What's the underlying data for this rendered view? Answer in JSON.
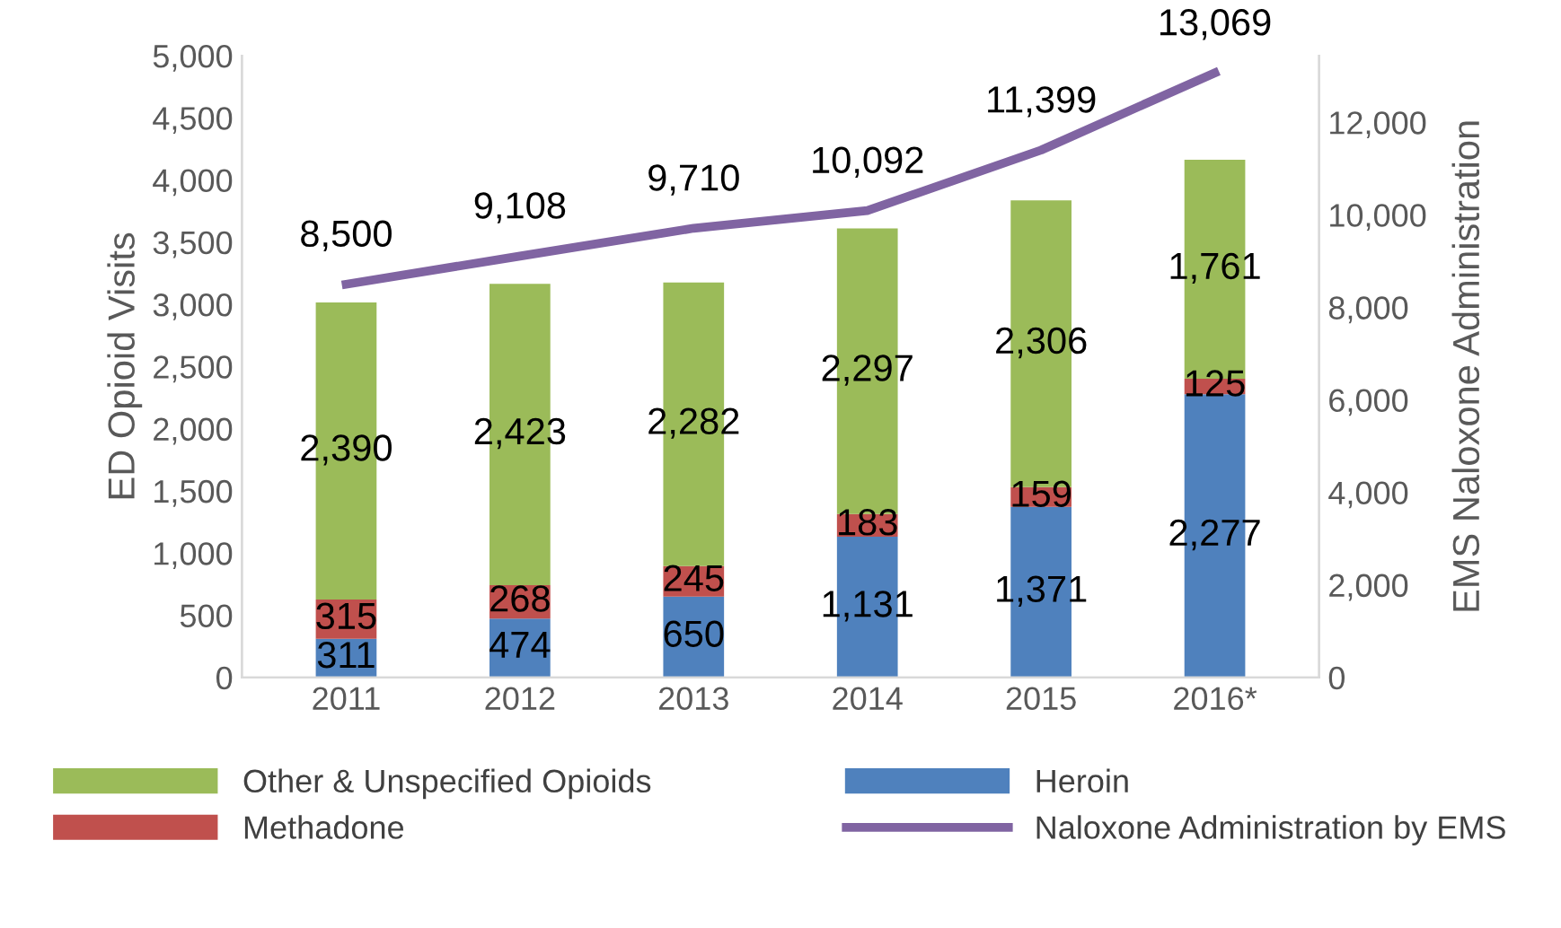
{
  "chart_data": {
    "type": "bar",
    "stacked": true,
    "categories": [
      "2011",
      "2012",
      "2013",
      "2014",
      "2015",
      "2016*"
    ],
    "ylabel": "ED Opioid Visits",
    "y2label": "EMS Naloxone Administration",
    "ylim": [
      0,
      5000
    ],
    "yticks": [
      0,
      {
        "value": 500,
        "label": "500"
      },
      {
        "value": 1000,
        "label": "1,000"
      },
      {
        "value": 1500,
        "label": "1,500"
      },
      {
        "value": 2000,
        "label": "2,000"
      },
      {
        "value": 2500,
        "label": "2,500"
      },
      {
        "value": 3000,
        "label": "3,000"
      },
      {
        "value": 3500,
        "label": "3,500"
      },
      {
        "value": 4000,
        "label": "4,000"
      },
      {
        "value": 4500,
        "label": "4,500"
      },
      {
        "value": 5000,
        "label": "5,000"
      }
    ],
    "y2lim": [
      0,
      13440
    ],
    "y2ticks": [
      0,
      {
        "value": 2000,
        "label": "2,000"
      },
      {
        "value": 4000,
        "label": "4,000"
      },
      {
        "value": 6000,
        "label": "6,000"
      },
      {
        "value": 8000,
        "label": "8,000"
      },
      {
        "value": 10000,
        "label": "10,000"
      },
      {
        "value": 12000,
        "label": "12,000"
      }
    ],
    "series": [
      {
        "name": "Heroin",
        "color": "#4f81bd",
        "values": [
          311,
          474,
          650,
          1131,
          1371,
          2277
        ],
        "value_labels": [
          "311",
          "474",
          "650",
          "1,131",
          "1,371",
          "2,277"
        ]
      },
      {
        "name": "Methadone",
        "color": "#c0504d",
        "values": [
          315,
          268,
          245,
          183,
          159,
          125
        ],
        "value_labels": [
          "315",
          "268",
          "245",
          "183",
          "159",
          "125"
        ]
      },
      {
        "name": "Other & Unspecified Opioids",
        "color": "#9bbb59",
        "values": [
          2390,
          2423,
          2282,
          2297,
          2306,
          1761
        ],
        "value_labels": [
          "2,390",
          "2,423",
          "2,282",
          "2,297",
          "2,306",
          "1,761"
        ]
      },
      {
        "name": "Naloxone Administration by EMS",
        "type": "line",
        "axis": "y2",
        "color": "#8064a2",
        "values": [
          8500,
          9108,
          9710,
          10092,
          11399,
          13069
        ],
        "value_labels": [
          "8,500",
          "9,108",
          "9,710",
          "10,092",
          "11,399",
          "13,069"
        ]
      }
    ],
    "legend": "bottom",
    "grid": false,
    "marker": "none",
    "line_style": "solid"
  }
}
